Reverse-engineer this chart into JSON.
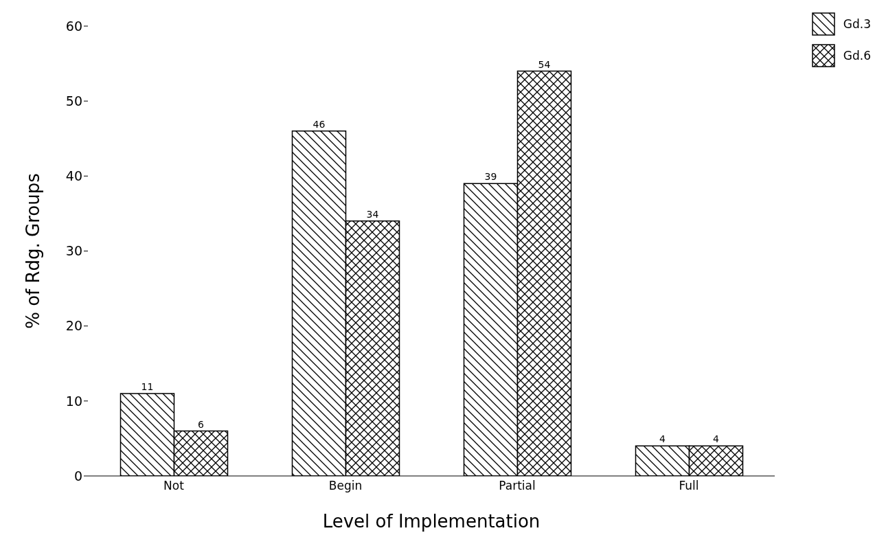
{
  "chart_data": {
    "type": "bar",
    "xlabel": "Level of Implementation",
    "ylabel": "% of Rdg. Groups",
    "categories": [
      "Not",
      "Begin",
      "Partial",
      "Full"
    ],
    "series": [
      {
        "name": "Gd.3",
        "color": "#000000",
        "values": [
          11,
          46,
          39,
          4
        ]
      },
      {
        "name": "Gd.6",
        "color": "#000000",
        "values": [
          6,
          34,
          54,
          4
        ]
      }
    ],
    "ylim": [
      0,
      60
    ],
    "yticks": [
      0,
      10,
      20,
      30,
      40,
      50,
      60
    ],
    "grid": false,
    "legend": "top right",
    "data_labels": true
  }
}
